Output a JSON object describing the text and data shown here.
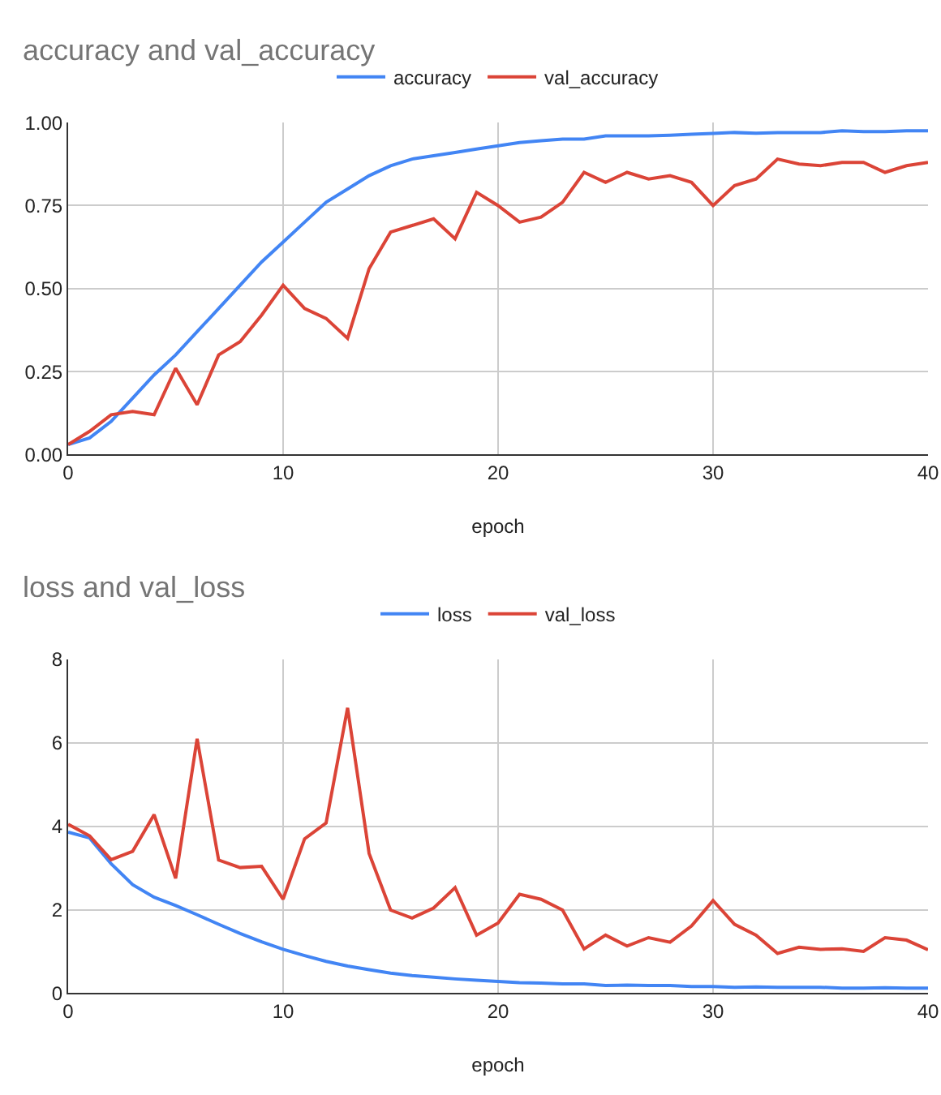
{
  "chart_data": [
    {
      "type": "line",
      "title": "accuracy and val_accuracy",
      "xlabel": "epoch",
      "x": [
        0,
        1,
        2,
        3,
        4,
        5,
        6,
        7,
        8,
        9,
        10,
        11,
        12,
        13,
        14,
        15,
        16,
        17,
        18,
        19,
        20,
        21,
        22,
        23,
        24,
        25,
        26,
        27,
        28,
        29,
        30,
        31,
        32,
        33,
        34,
        35,
        36,
        37,
        38,
        39,
        40
      ],
      "series": [
        {
          "name": "accuracy",
          "color": "#4285f4",
          "values": [
            0.03,
            0.05,
            0.1,
            0.17,
            0.24,
            0.3,
            0.37,
            0.44,
            0.51,
            0.58,
            0.64,
            0.7,
            0.76,
            0.8,
            0.84,
            0.87,
            0.89,
            0.9,
            0.91,
            0.92,
            0.93,
            0.94,
            0.945,
            0.95,
            0.95,
            0.96,
            0.96,
            0.96,
            0.962,
            0.965,
            0.967,
            0.97,
            0.968,
            0.97,
            0.97,
            0.97,
            0.975,
            0.973,
            0.973,
            0.975,
            0.975
          ]
        },
        {
          "name": "val_accuracy",
          "color": "#db4437",
          "values": [
            0.03,
            0.07,
            0.12,
            0.13,
            0.12,
            0.26,
            0.15,
            0.3,
            0.34,
            0.42,
            0.51,
            0.44,
            0.41,
            0.35,
            0.56,
            0.67,
            0.69,
            0.71,
            0.65,
            0.79,
            0.75,
            0.7,
            0.715,
            0.76,
            0.85,
            0.82,
            0.85,
            0.83,
            0.84,
            0.82,
            0.75,
            0.81,
            0.83,
            0.89,
            0.875,
            0.87,
            0.88,
            0.88,
            0.85,
            0.87,
            0.88
          ]
        }
      ],
      "xlim": [
        0,
        40
      ],
      "xticks": [
        0,
        10,
        20,
        30,
        40
      ],
      "ylim": [
        0,
        1
      ],
      "yticks": [
        {
          "value": 0,
          "label": "0.00"
        },
        {
          "value": 0.25,
          "label": "0.25"
        },
        {
          "value": 0.5,
          "label": "0.50"
        },
        {
          "value": 0.75,
          "label": "0.75"
        },
        {
          "value": 1,
          "label": "1.00"
        }
      ],
      "grid": true,
      "legend": "top",
      "marker": "none",
      "line_style": "solid"
    },
    {
      "type": "line",
      "title": "loss and val_loss",
      "xlabel": "epoch",
      "x": [
        0,
        1,
        2,
        3,
        4,
        5,
        6,
        7,
        8,
        9,
        10,
        11,
        12,
        13,
        14,
        15,
        16,
        17,
        18,
        19,
        20,
        21,
        22,
        23,
        24,
        25,
        26,
        27,
        28,
        29,
        30,
        31,
        32,
        33,
        34,
        35,
        36,
        37,
        38,
        39,
        40
      ],
      "series": [
        {
          "name": "loss",
          "color": "#4285f4",
          "values": [
            3.86,
            3.72,
            3.1,
            2.6,
            2.3,
            2.1,
            1.88,
            1.65,
            1.43,
            1.23,
            1.05,
            0.9,
            0.76,
            0.65,
            0.56,
            0.48,
            0.42,
            0.38,
            0.34,
            0.31,
            0.28,
            0.25,
            0.24,
            0.22,
            0.22,
            0.18,
            0.19,
            0.18,
            0.18,
            0.16,
            0.16,
            0.14,
            0.15,
            0.14,
            0.14,
            0.14,
            0.12,
            0.12,
            0.13,
            0.12,
            0.12
          ]
        },
        {
          "name": "val_loss",
          "color": "#db4437",
          "values": [
            4.05,
            3.77,
            3.2,
            3.4,
            4.28,
            2.75,
            6.1,
            3.19,
            3.01,
            3.04,
            2.25,
            3.7,
            4.08,
            6.84,
            3.35,
            1.99,
            1.8,
            2.04,
            2.53,
            1.39,
            1.68,
            2.37,
            2.25,
            1.99,
            1.06,
            1.39,
            1.13,
            1.33,
            1.22,
            1.61,
            2.22,
            1.65,
            1.39,
            0.95,
            1.1,
            1.05,
            1.06,
            1.0,
            1.33,
            1.27,
            1.04
          ]
        }
      ],
      "xlim": [
        0,
        40
      ],
      "xticks": [
        0,
        10,
        20,
        30,
        40
      ],
      "ylim": [
        0,
        8
      ],
      "yticks": [
        0,
        2,
        4,
        6,
        8
      ],
      "grid": true,
      "legend": "top",
      "marker": "none",
      "line_style": "solid"
    }
  ]
}
